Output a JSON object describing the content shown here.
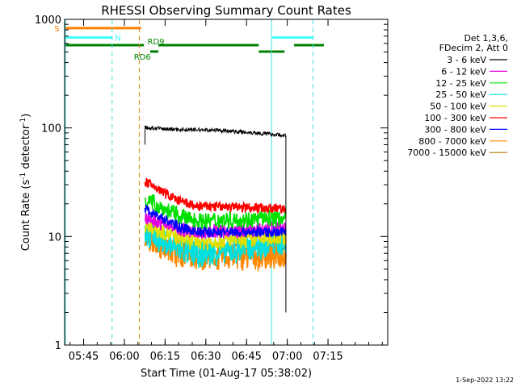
{
  "chart_data": {
    "type": "line",
    "title": "RHESSI Observing Summary Count Rates",
    "xlabel": "Start Time (01-Aug-17 05:38:02)",
    "ylabel_main": "Count Rate (s",
    "ylabel_sup1": "-1",
    "ylabel_mid": " detector",
    "ylabel_sup2": "-1",
    "ylabel_end": ")",
    "y_scale": "log",
    "ylim": [
      1,
      1000
    ],
    "xlim_min": [
      338,
      457
    ],
    "x_ticks": [
      {
        "min": 345,
        "label": "05:45"
      },
      {
        "min": 360,
        "label": "06:00"
      },
      {
        "min": 375,
        "label": "06:15"
      },
      {
        "min": 390,
        "label": "06:30"
      },
      {
        "min": 405,
        "label": "06:45"
      },
      {
        "min": 420,
        "label": "07:00"
      },
      {
        "min": 435,
        "label": "07:15"
      }
    ],
    "y_ticks": [
      {
        "value": 1,
        "label": "1"
      },
      {
        "value": 10,
        "label": "10"
      },
      {
        "value": 100,
        "label": "100"
      },
      {
        "value": 1000,
        "label": "1000"
      }
    ],
    "legend_header": [
      "Det 1,3,6,",
      "FDecim 2, Att 0"
    ],
    "legend_position": "right",
    "series": [
      {
        "name": "3 - 6 keV",
        "color": "#000000",
        "t_start": 367.6,
        "t_end": 419.5,
        "start": 100,
        "min": 96,
        "end": 85,
        "noise": 0.015
      },
      {
        "name": "6 - 12 keV",
        "color": "#e000e0",
        "t_start": 367.6,
        "t_end": 419.5,
        "start": 15,
        "min": 11,
        "end": 12,
        "noise": 0.05
      },
      {
        "name": "12 - 25 keV",
        "color": "#00e000",
        "t_start": 367.6,
        "t_end": 419.5,
        "start": 22,
        "min": 14,
        "end": 15,
        "noise": 0.06
      },
      {
        "name": "25 - 50 keV",
        "color": "#00e0e0",
        "t_start": 367.6,
        "t_end": 419.5,
        "start": 11,
        "min": 7,
        "end": 9,
        "noise": 0.1
      },
      {
        "name": "50 - 100 keV",
        "color": "#e0e000",
        "t_start": 367.6,
        "t_end": 419.5,
        "start": 13,
        "min": 9,
        "end": 10,
        "noise": 0.06
      },
      {
        "name": "100 - 300 keV",
        "color": "#ff0000",
        "t_start": 367.6,
        "t_end": 419.5,
        "start": 32,
        "min": 19,
        "end": 18,
        "noise": 0.035
      },
      {
        "name": "300 - 800 keV",
        "color": "#0000ff",
        "t_start": 367.6,
        "t_end": 419.5,
        "start": 18,
        "min": 11,
        "end": 11,
        "noise": 0.035
      },
      {
        "name": "800 - 7000 keV",
        "color": "#ff8800",
        "t_start": 367.6,
        "t_end": 419.5,
        "start": 10,
        "min": 6.5,
        "end": 6.8,
        "noise": 0.1
      },
      {
        "name": "7000 - 15000 keV",
        "color": "#b07800",
        "t_start": 367.6,
        "t_end": 419.5,
        "start": 9,
        "min": 8,
        "end": 8,
        "noise": 0.03
      }
    ],
    "vlines": [
      {
        "min": 338.3,
        "color": "#40e0e0",
        "style": "solid"
      },
      {
        "min": 355.5,
        "color": "#40e0e0",
        "style": "dashed"
      },
      {
        "min": 365.5,
        "color": "#e08020",
        "style": "dashed"
      },
      {
        "min": 414.2,
        "color": "#40e0e0",
        "style": "solid"
      },
      {
        "min": 429.5,
        "color": "#40e0e0",
        "style": "dashed"
      }
    ],
    "flags": [
      {
        "label": "S",
        "color": "#ff8000",
        "segments": [
          [
            338,
            366.2
          ]
        ],
        "label_min": 334.2,
        "value": 830
      },
      {
        "label": "N",
        "color": "#40ffff",
        "segments": [
          [
            338,
            355.5
          ],
          [
            414.5,
            429.5
          ]
        ],
        "label_min": 356.5,
        "value": 680
      },
      {
        "label": "RD6",
        "color": "#008000",
        "segments": [
          [
            369.5,
            372.5
          ],
          [
            409.5,
            419
          ]
        ],
        "label_min": 363.5,
        "value": 505
      },
      {
        "label": "RD9",
        "color": "#008000",
        "segments": [
          [
            338,
            367.2
          ],
          [
            372.5,
            409.5
          ],
          [
            422.5,
            433.5
          ]
        ],
        "label_min": 368.5,
        "value": 578
      }
    ],
    "footer_timestamp": "1-Sep-2022 13:22"
  }
}
